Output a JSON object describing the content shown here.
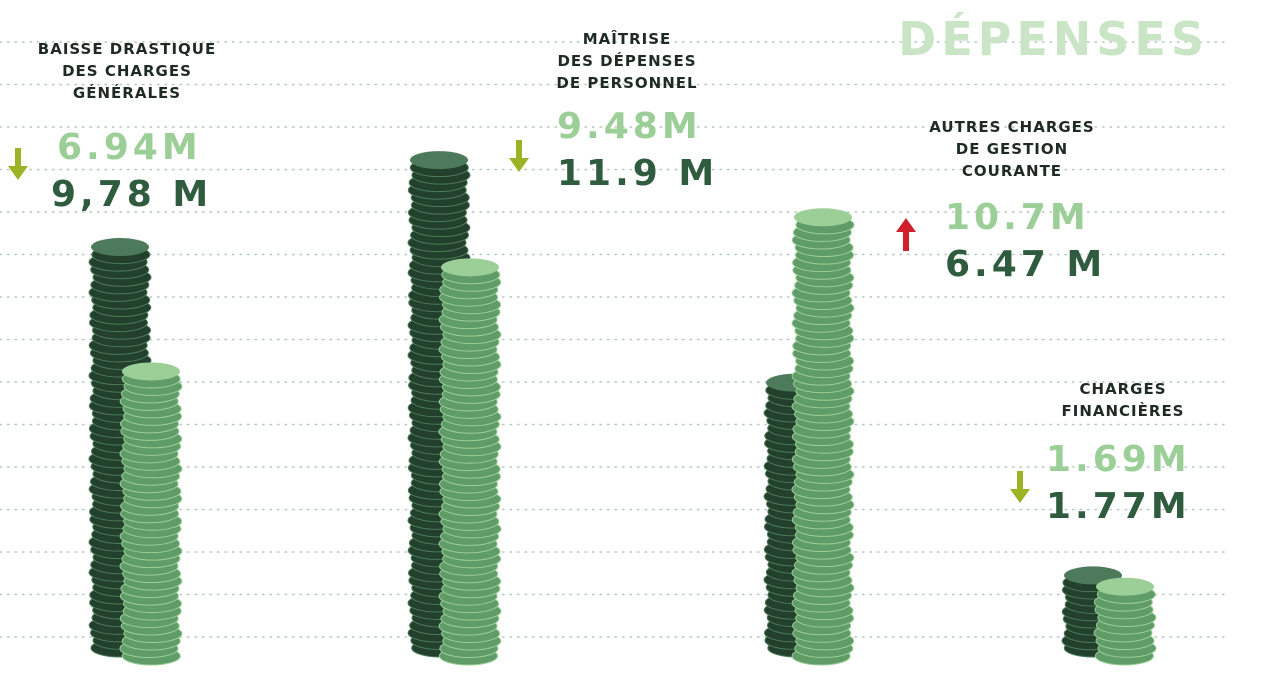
{
  "chart_data": {
    "type": "coin-stack",
    "title": "DÉPENSES",
    "categories": [
      "BAISSE DRASTIQUE\nDES CHARGES\nGÉNÉRALES",
      "MAÎTRISE\nDES DÉPENSES\nDE PERSONNEL",
      "AUTRES CHARGES\nDE GESTION\nCOURANTE",
      "CHARGES\nFINANCIÈRES"
    ],
    "series": [
      {
        "color": "#9ccf98",
        "values": [
          6.94,
          9.48,
          10.7,
          1.69
        ],
        "value_labels": [
          "6.94M",
          "9.48M",
          "10.7M",
          "1.69M"
        ]
      },
      {
        "color": "#2f5b3f",
        "values": [
          9.78,
          11.9,
          6.47,
          1.77
        ],
        "value_labels": [
          "9,78 M",
          "11.9 M",
          "6.47 M",
          "1.77M"
        ]
      }
    ]
  }
}
